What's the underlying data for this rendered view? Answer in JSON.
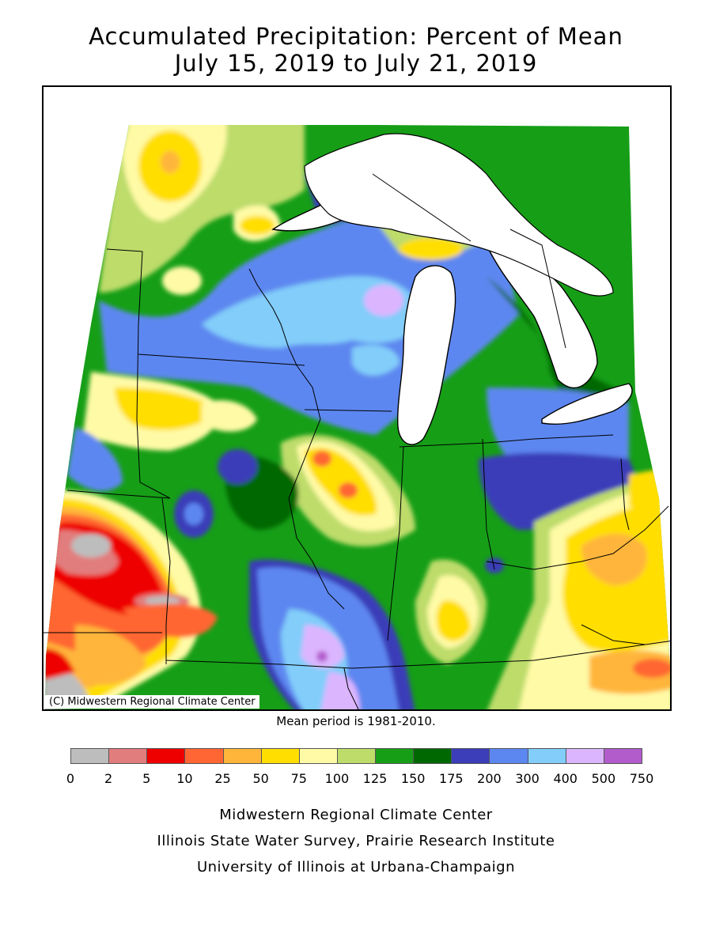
{
  "title": {
    "line1": "Accumulated Precipitation: Percent of Mean",
    "line2": "July 15, 2019 to July 21, 2019"
  },
  "map": {
    "copyright": "(C) Midwestern Regional Climate Center",
    "region": "Upper Midwest / Great Lakes"
  },
  "mean_period": "Mean period is 1981-2010.",
  "legend": {
    "bins": [
      {
        "label": "0",
        "color": "#bdbdbd"
      },
      {
        "label": "2",
        "color": "#e27d7d"
      },
      {
        "label": "5",
        "color": "#ee0000"
      },
      {
        "label": "10",
        "color": "#ff6633"
      },
      {
        "label": "25",
        "color": "#ffb53a"
      },
      {
        "label": "50",
        "color": "#ffde00"
      },
      {
        "label": "75",
        "color": "#fffaa6"
      },
      {
        "label": "100",
        "color": "#bddc6a"
      },
      {
        "label": "125",
        "color": "#169e17"
      },
      {
        "label": "150",
        "color": "#006800"
      },
      {
        "label": "175",
        "color": "#3b3eb8"
      },
      {
        "label": "200",
        "color": "#5d87f0"
      },
      {
        "label": "300",
        "color": "#82cdfa"
      },
      {
        "label": "400",
        "color": "#dcb5ff"
      },
      {
        "label": "500",
        "color": "#b25ccc"
      }
    ],
    "last_tick": "750"
  },
  "credits": [
    "Midwestern Regional Climate Center",
    "Illinois State Water Survey, Prairie Research Institute",
    "University of Illinois at Urbana-Champaign"
  ]
}
